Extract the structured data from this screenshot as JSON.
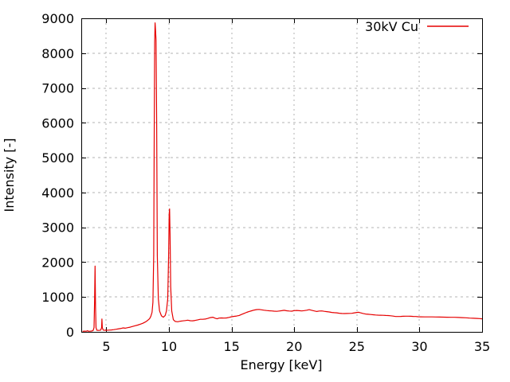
{
  "chart_data": {
    "type": "line",
    "title": "",
    "xlabel": "Energy [keV]",
    "ylabel": "Intensity [-]",
    "xlim": [
      3,
      35
    ],
    "ylim": [
      0,
      9000
    ],
    "x_ticks": [
      5,
      10,
      15,
      20,
      25,
      30,
      35
    ],
    "y_ticks": [
      0,
      1000,
      2000,
      3000,
      4000,
      5000,
      6000,
      7000,
      8000,
      9000
    ],
    "grid": true,
    "legend_position": "top-right",
    "line_color": "#e60000",
    "grid_color": "#b3b3b3",
    "frame_color": "#000000",
    "background_color": "#ffffff",
    "series": [
      {
        "name": "30kV Cu",
        "points": [
          [
            3.1,
            15
          ],
          [
            3.25,
            20
          ],
          [
            3.4,
            18
          ],
          [
            3.5,
            35
          ],
          [
            3.55,
            20
          ],
          [
            3.7,
            18
          ],
          [
            3.85,
            25
          ],
          [
            3.95,
            40
          ],
          [
            4.02,
            120
          ],
          [
            4.06,
            900
          ],
          [
            4.1,
            1890
          ],
          [
            4.14,
            700
          ],
          [
            4.18,
            120
          ],
          [
            4.25,
            45
          ],
          [
            4.4,
            40
          ],
          [
            4.55,
            50
          ],
          [
            4.62,
            120
          ],
          [
            4.65,
            370
          ],
          [
            4.68,
            120
          ],
          [
            4.75,
            50
          ],
          [
            4.9,
            45
          ],
          [
            5.0,
            45
          ],
          [
            5.2,
            50
          ],
          [
            5.4,
            55
          ],
          [
            5.6,
            65
          ],
          [
            5.8,
            75
          ],
          [
            6.0,
            90
          ],
          [
            6.2,
            100
          ],
          [
            6.35,
            115
          ],
          [
            6.5,
            105
          ],
          [
            6.7,
            120
          ],
          [
            6.9,
            135
          ],
          [
            7.1,
            155
          ],
          [
            7.3,
            175
          ],
          [
            7.5,
            195
          ],
          [
            7.7,
            220
          ],
          [
            7.9,
            245
          ],
          [
            8.1,
            280
          ],
          [
            8.3,
            330
          ],
          [
            8.45,
            380
          ],
          [
            8.55,
            440
          ],
          [
            8.65,
            560
          ],
          [
            8.72,
            850
          ],
          [
            8.78,
            2200
          ],
          [
            8.83,
            6000
          ],
          [
            8.86,
            8300
          ],
          [
            8.89,
            8870
          ],
          [
            8.93,
            8650
          ],
          [
            8.97,
            8380
          ],
          [
            9.02,
            6000
          ],
          [
            9.07,
            2200
          ],
          [
            9.15,
            950
          ],
          [
            9.25,
            600
          ],
          [
            9.4,
            460
          ],
          [
            9.55,
            420
          ],
          [
            9.7,
            470
          ],
          [
            9.8,
            600
          ],
          [
            9.9,
            950
          ],
          [
            9.97,
            2200
          ],
          [
            10.02,
            3380
          ],
          [
            10.05,
            3530
          ],
          [
            10.09,
            2800
          ],
          [
            10.14,
            1300
          ],
          [
            10.22,
            600
          ],
          [
            10.35,
            350
          ],
          [
            10.5,
            300
          ],
          [
            10.7,
            290
          ],
          [
            10.9,
            305
          ],
          [
            11.1,
            315
          ],
          [
            11.3,
            325
          ],
          [
            11.5,
            335
          ],
          [
            11.7,
            320
          ],
          [
            11.9,
            318
          ],
          [
            12.1,
            330
          ],
          [
            12.3,
            345
          ],
          [
            12.5,
            360
          ],
          [
            12.7,
            362
          ],
          [
            12.9,
            368
          ],
          [
            13.1,
            385
          ],
          [
            13.3,
            410
          ],
          [
            13.5,
            420
          ],
          [
            13.7,
            390
          ],
          [
            13.85,
            375
          ],
          [
            14.0,
            395
          ],
          [
            14.2,
            400
          ],
          [
            14.4,
            395
          ],
          [
            14.6,
            400
          ],
          [
            14.8,
            415
          ],
          [
            15.0,
            435
          ],
          [
            15.2,
            445
          ],
          [
            15.4,
            455
          ],
          [
            15.6,
            470
          ],
          [
            15.8,
            500
          ],
          [
            16.0,
            530
          ],
          [
            16.2,
            560
          ],
          [
            16.4,
            585
          ],
          [
            16.6,
            605
          ],
          [
            16.8,
            625
          ],
          [
            17.0,
            640
          ],
          [
            17.2,
            645
          ],
          [
            17.4,
            632
          ],
          [
            17.6,
            622
          ],
          [
            17.8,
            612
          ],
          [
            18.0,
            605
          ],
          [
            18.2,
            600
          ],
          [
            18.4,
            593
          ],
          [
            18.6,
            590
          ],
          [
            18.8,
            598
          ],
          [
            19.0,
            608
          ],
          [
            19.2,
            618
          ],
          [
            19.4,
            605
          ],
          [
            19.6,
            598
          ],
          [
            19.8,
            595
          ],
          [
            20.0,
            610
          ],
          [
            20.2,
            615
          ],
          [
            20.4,
            608
          ],
          [
            20.6,
            600
          ],
          [
            20.8,
            610
          ],
          [
            21.0,
            622
          ],
          [
            21.2,
            638
          ],
          [
            21.4,
            620
          ],
          [
            21.6,
            600
          ],
          [
            21.8,
            585
          ],
          [
            22.0,
            598
          ],
          [
            22.2,
            600
          ],
          [
            22.4,
            590
          ],
          [
            22.6,
            580
          ],
          [
            22.8,
            570
          ],
          [
            23.0,
            558
          ],
          [
            23.2,
            550
          ],
          [
            23.4,
            545
          ],
          [
            23.6,
            535
          ],
          [
            23.8,
            528
          ],
          [
            24.0,
            525
          ],
          [
            24.2,
            528
          ],
          [
            24.4,
            530
          ],
          [
            24.6,
            532
          ],
          [
            24.8,
            545
          ],
          [
            25.0,
            558
          ],
          [
            25.15,
            562
          ],
          [
            25.3,
            545
          ],
          [
            25.5,
            528
          ],
          [
            25.7,
            512
          ],
          [
            25.9,
            505
          ],
          [
            26.1,
            498
          ],
          [
            26.3,
            490
          ],
          [
            26.5,
            485
          ],
          [
            26.7,
            480
          ],
          [
            26.9,
            478
          ],
          [
            27.1,
            474
          ],
          [
            27.3,
            470
          ],
          [
            27.5,
            468
          ],
          [
            27.7,
            462
          ],
          [
            27.9,
            452
          ],
          [
            28.1,
            442
          ],
          [
            28.3,
            440
          ],
          [
            28.5,
            444
          ],
          [
            28.7,
            448
          ],
          [
            28.9,
            450
          ],
          [
            29.1,
            450
          ],
          [
            29.3,
            448
          ],
          [
            29.5,
            444
          ],
          [
            29.7,
            440
          ],
          [
            29.9,
            435
          ],
          [
            30.1,
            432
          ],
          [
            30.4,
            430
          ],
          [
            30.7,
            430
          ],
          [
            31.0,
            430
          ],
          [
            31.3,
            428
          ],
          [
            31.6,
            426
          ],
          [
            31.9,
            422
          ],
          [
            32.2,
            420
          ],
          [
            32.5,
            419
          ],
          [
            32.8,
            417
          ],
          [
            33.1,
            414
          ],
          [
            33.4,
            410
          ],
          [
            33.7,
            404
          ],
          [
            34.0,
            396
          ],
          [
            34.3,
            390
          ],
          [
            34.6,
            385
          ],
          [
            34.8,
            382
          ],
          [
            35.0,
            375
          ]
        ]
      }
    ]
  }
}
